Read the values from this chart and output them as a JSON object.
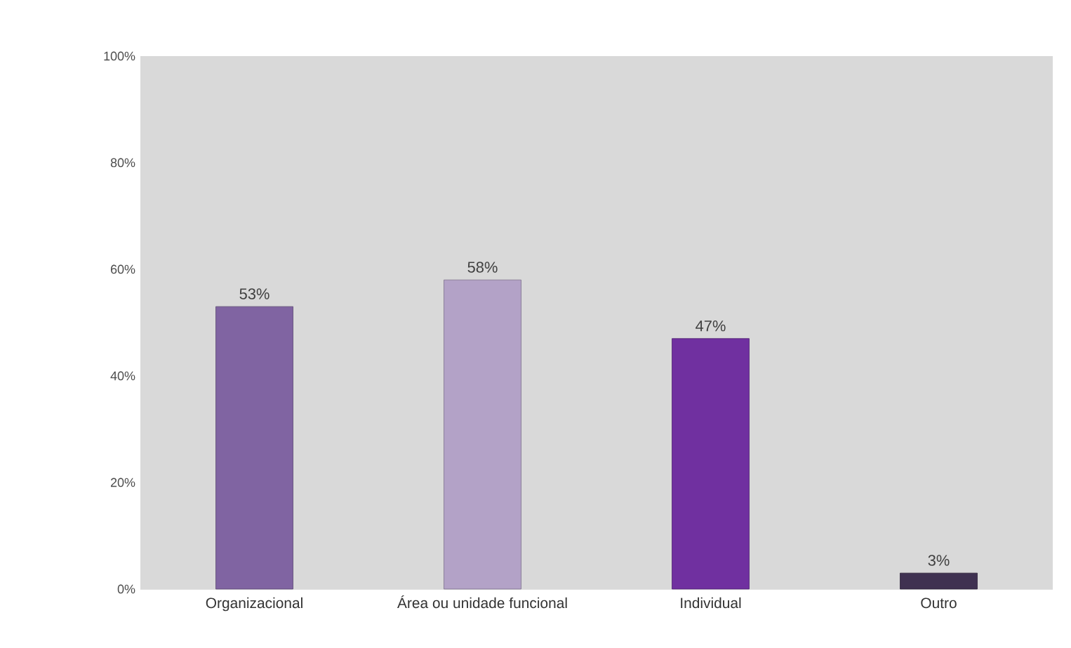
{
  "chart_data": {
    "type": "bar",
    "categories": [
      "Organizacional",
      "Área ou unidade funcional",
      "Individual",
      "Outro"
    ],
    "values": [
      53,
      58,
      47,
      3
    ],
    "colors": [
      "#8064a2",
      "#b3a2c7",
      "#7030a0",
      "#3f3151"
    ],
    "value_labels": [
      "53%",
      "58%",
      "47%",
      "3%"
    ],
    "ylim": [
      0,
      100
    ],
    "yticks": [
      {
        "value": 0,
        "label": "0%"
      },
      {
        "value": 20,
        "label": "20%"
      },
      {
        "value": 40,
        "label": "40%"
      },
      {
        "value": 60,
        "label": "60%"
      },
      {
        "value": 80,
        "label": "80%"
      },
      {
        "value": 100,
        "label": "100%"
      }
    ],
    "grid": false
  }
}
